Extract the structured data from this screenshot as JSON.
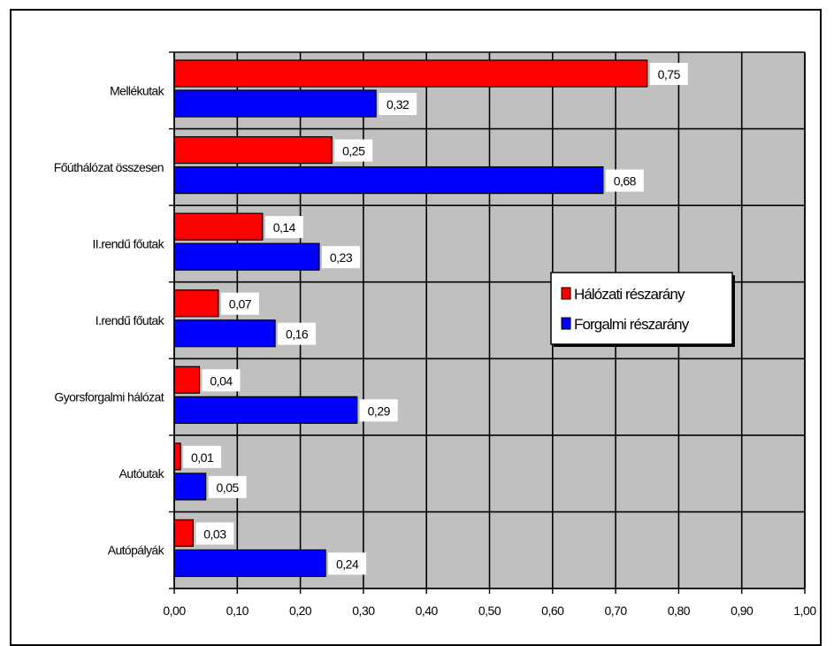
{
  "chart_data": {
    "type": "bar",
    "orientation": "horizontal",
    "categories": [
      "Mellékutak",
      "Főúthálózat összesen",
      "II.rendű főutak",
      "I.rendű főutak",
      "Gyorsforgalmi hálózat",
      "Autóutak",
      "Autópályák"
    ],
    "series": [
      {
        "name": "Hálózati részarány",
        "color": "#ff0000",
        "values": [
          0.75,
          0.25,
          0.14,
          0.07,
          0.04,
          0.01,
          0.03
        ],
        "labels": [
          "0,75",
          "0,25",
          "0,14",
          "0,07",
          "0,04",
          "0,01",
          "0,03"
        ]
      },
      {
        "name": "Forgalmi részarány",
        "color": "#0000ff",
        "values": [
          0.32,
          0.68,
          0.23,
          0.16,
          0.29,
          0.05,
          0.24
        ],
        "labels": [
          "0,32",
          "0,68",
          "0,23",
          "0,16",
          "0,29",
          "0,05",
          "0,24"
        ]
      }
    ],
    "xlim": [
      0,
      1
    ],
    "x_ticks": [
      "0,00",
      "0,10",
      "0,20",
      "0,30",
      "0,40",
      "0,50",
      "0,60",
      "0,70",
      "0,80",
      "0,90",
      "1,00"
    ],
    "grid": true,
    "plot_background": "#c0c0c0",
    "legend": {
      "position": "right",
      "entries": [
        "Hálózati részarány",
        "Forgalmi részarány"
      ]
    }
  }
}
